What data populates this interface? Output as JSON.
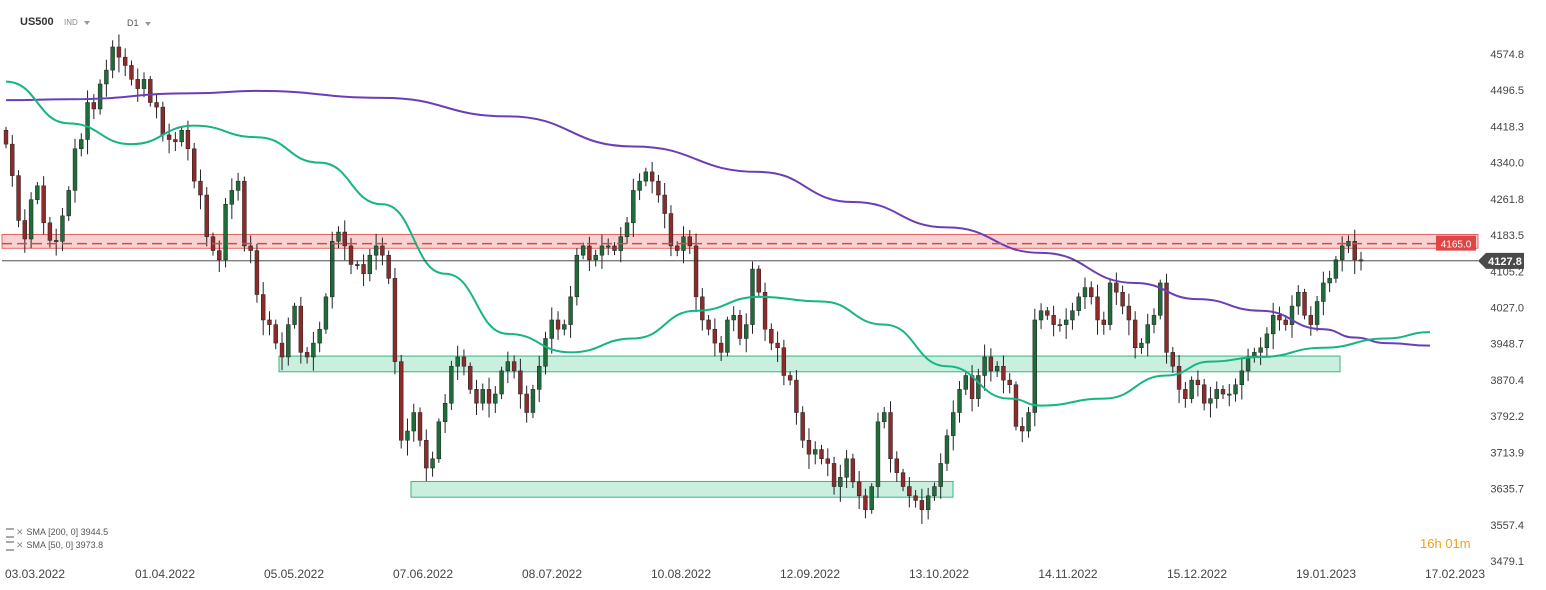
{
  "header": {
    "symbol": "US500",
    "instrument_type": "IND",
    "timeframe": "D1"
  },
  "legend": [
    {
      "label": "SMA",
      "params": "[200,  0]",
      "value": "3944.5"
    },
    {
      "label": "SMA",
      "params": "[50,  0]",
      "value": "3973.8"
    }
  ],
  "timer": {
    "hours": "16",
    "h_unit": "h",
    "minutes": "01",
    "m_unit": "m"
  },
  "colors": {
    "bull": "#1f6b3a",
    "bear": "#8e2a2a",
    "sma200": "#6a3fb5",
    "sma50": "#16b583",
    "resistance_fill": "#f7d2d2",
    "resistance_line": "#e04545",
    "support_fill": "#c9efde",
    "support_border": "#2db37a",
    "price_tag": "#4a4a4a",
    "level_tag": "#e04545"
  },
  "chart_data": {
    "type": "candlestick",
    "symbol": "US500",
    "timeframe": "D1",
    "ylim": [
      3479.1,
      4615
    ],
    "y_ticks": [
      "4574.8",
      "4496.5",
      "4418.3",
      "4340.0",
      "4261.8",
      "4183.5",
      "4105.2",
      "4027.0",
      "3948.7",
      "3870.4",
      "3792.2",
      "3713.9",
      "3635.7",
      "3557.4",
      "3479.1"
    ],
    "x_ticks": [
      "03.03.2022",
      "01.04.2022",
      "05.05.2022",
      "07.06.2022",
      "08.07.2022",
      "10.08.2022",
      "12.09.2022",
      "13.10.2022",
      "14.11.2022",
      "15.12.2022",
      "19.01.2023",
      "17.02.2023"
    ],
    "current_price": "4127.8",
    "resistance_level": "4165.0",
    "resistance_zone": [
      4155,
      4185
    ],
    "support_zones": [
      {
        "from_label": "05.05.2022",
        "to_label": "19.01.2023",
        "low": 3888,
        "high": 3922
      },
      {
        "from_label": "07.06.2022",
        "to_label": "13.10.2022",
        "low": 3617,
        "high": 3651
      }
    ],
    "candles": [
      4380,
      4312,
      4215,
      4175,
      4260,
      4290,
      4210,
      4172,
      4170,
      4225,
      4280,
      4370,
      4390,
      4470,
      4456,
      4510,
      4540,
      4590,
      4568,
      4550,
      4520,
      4500,
      4520,
      4470,
      4460,
      4400,
      4390,
      4385,
      4410,
      4370,
      4300,
      4270,
      4180,
      4150,
      4130,
      4250,
      4280,
      4300,
      4160,
      4150,
      4055,
      4000,
      3990,
      3950,
      3920,
      3990,
      4030,
      3930,
      3920,
      3950,
      3980,
      4050,
      4170,
      4190,
      4160,
      4120,
      4120,
      4100,
      4140,
      4160,
      4140,
      4090,
      3910,
      3740,
      3760,
      3800,
      3740,
      3680,
      3700,
      3780,
      3820,
      3900,
      3920,
      3900,
      3850,
      3820,
      3850,
      3820,
      3840,
      3890,
      3910,
      3890,
      3840,
      3800,
      3850,
      3900,
      3960,
      4000,
      3980,
      3990,
      4050,
      4140,
      4160,
      4130,
      4140,
      4160,
      4160,
      4150,
      4180,
      4210,
      4280,
      4300,
      4320,
      4300,
      4270,
      4230,
      4160,
      4150,
      4180,
      4160,
      4050,
      4000,
      3980,
      3950,
      3930,
      4000,
      4010,
      3960,
      3990,
      4110,
      4060,
      3980,
      3950,
      3940,
      3880,
      3870,
      3800,
      3740,
      3710,
      3720,
      3700,
      3690,
      3640,
      3660,
      3700,
      3650,
      3620,
      3590,
      3640,
      3780,
      3800,
      3700,
      3670,
      3640,
      3620,
      3610,
      3590,
      3620,
      3640,
      3690,
      3750,
      3800,
      3850,
      3880,
      3830,
      3880,
      3920,
      3890,
      3900,
      3870,
      3860,
      3770,
      3760,
      3800,
      4000,
      4020,
      4010,
      3990,
      3990,
      4000,
      4020,
      4050,
      4070,
      4050,
      4000,
      3990,
      4080,
      4060,
      4030,
      4000,
      3940,
      3950,
      3990,
      4010,
      4080,
      3930,
      3900,
      3850,
      3830,
      3870,
      3860,
      3820,
      3830,
      3850,
      3840,
      3840,
      3860,
      3890,
      3920,
      3930,
      3940,
      3970,
      4010,
      4000,
      3990,
      4030,
      4060,
      4010,
      3990,
      4040,
      4080,
      4090,
      4130,
      4160,
      4170,
      4130,
      4127.8
    ],
    "series": [
      {
        "name": "SMA [200, 0]",
        "last_value": 3944.5,
        "points": [
          [
            0,
            4475
          ],
          [
            10,
            4477
          ],
          [
            30,
            4490
          ],
          [
            40,
            4495
          ],
          [
            60,
            4480
          ],
          [
            80,
            4440
          ],
          [
            100,
            4375
          ],
          [
            120,
            4320
          ],
          [
            135,
            4255
          ],
          [
            150,
            4200
          ],
          [
            165,
            4145
          ],
          [
            180,
            4080
          ],
          [
            190,
            4045
          ],
          [
            200,
            4020
          ],
          [
            210,
            3980
          ],
          [
            215,
            3962
          ],
          [
            220,
            3950
          ],
          [
            227,
            3944.5
          ]
        ]
      },
      {
        "name": "SMA [50, 0]",
        "last_value": 3973.8,
        "points": [
          [
            0,
            4515
          ],
          [
            10,
            4425
          ],
          [
            20,
            4380
          ],
          [
            30,
            4420
          ],
          [
            40,
            4395
          ],
          [
            50,
            4340
          ],
          [
            60,
            4250
          ],
          [
            70,
            4100
          ],
          [
            80,
            3970
          ],
          [
            90,
            3930
          ],
          [
            100,
            3960
          ],
          [
            110,
            4020
          ],
          [
            120,
            4050
          ],
          [
            130,
            4040
          ],
          [
            140,
            3990
          ],
          [
            150,
            3900
          ],
          [
            160,
            3830
          ],
          [
            165,
            3815
          ],
          [
            175,
            3830
          ],
          [
            185,
            3880
          ],
          [
            192,
            3910
          ],
          [
            200,
            3920
          ],
          [
            210,
            3940
          ],
          [
            220,
            3960
          ],
          [
            227,
            3973.8
          ]
        ]
      }
    ]
  }
}
